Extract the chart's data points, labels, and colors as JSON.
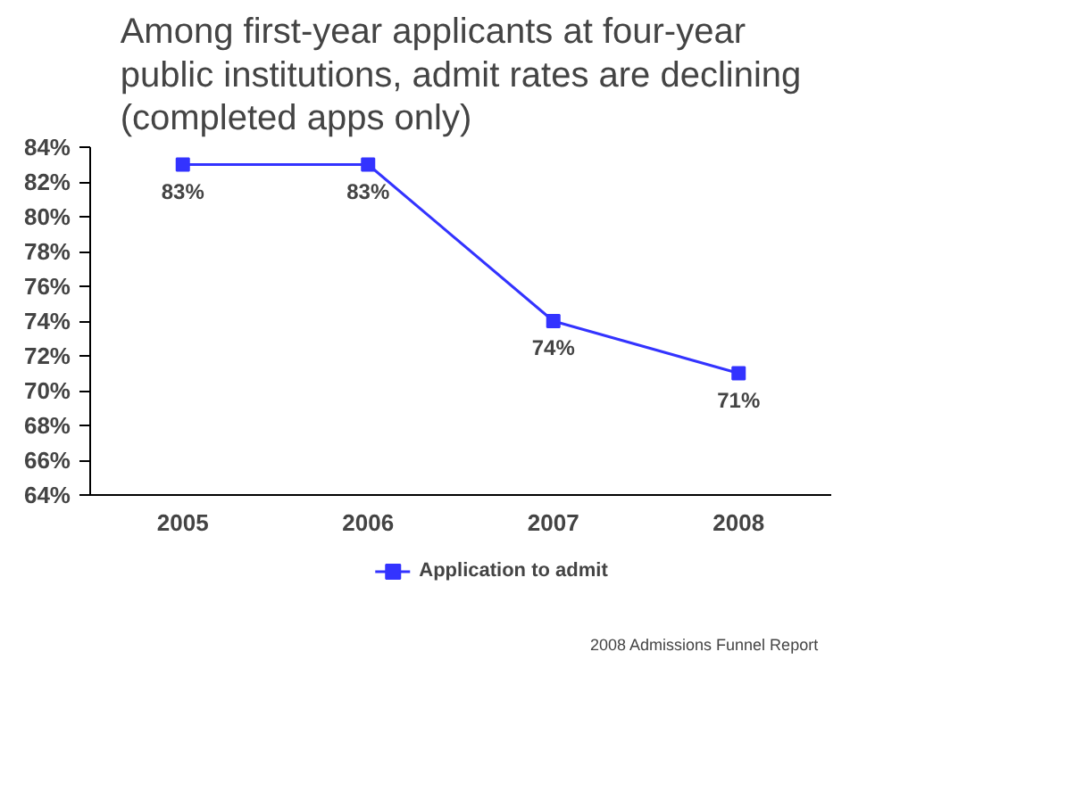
{
  "chart_data": {
    "type": "line",
    "title": "Among first-year applicants at four-year public institutions, admit rates are declining (completed apps only)",
    "categories": [
      "2005",
      "2006",
      "2007",
      "2008"
    ],
    "series": [
      {
        "name": "Application to admit",
        "color": "#3333ff",
        "values": [
          83,
          83,
          74,
          71
        ]
      }
    ],
    "ylim": [
      64,
      84
    ],
    "yticks": [
      {
        "value": 64,
        "label": "64%"
      },
      {
        "value": 66,
        "label": "66%"
      },
      {
        "value": 68,
        "label": "68%"
      },
      {
        "value": 70,
        "label": "70%"
      },
      {
        "value": 72,
        "label": "72%"
      },
      {
        "value": 74,
        "label": "74%"
      },
      {
        "value": 76,
        "label": "76%"
      },
      {
        "value": 78,
        "label": "78%"
      },
      {
        "value": 80,
        "label": "80%"
      },
      {
        "value": 82,
        "label": "82%"
      },
      {
        "value": 84,
        "label": "84%"
      }
    ],
    "value_labels": [
      "83%",
      "83%",
      "74%",
      "71%"
    ],
    "marker": "square",
    "grid": false,
    "legend": "bottom",
    "annotations": [
      "2008 Admissions Funnel Report"
    ]
  }
}
